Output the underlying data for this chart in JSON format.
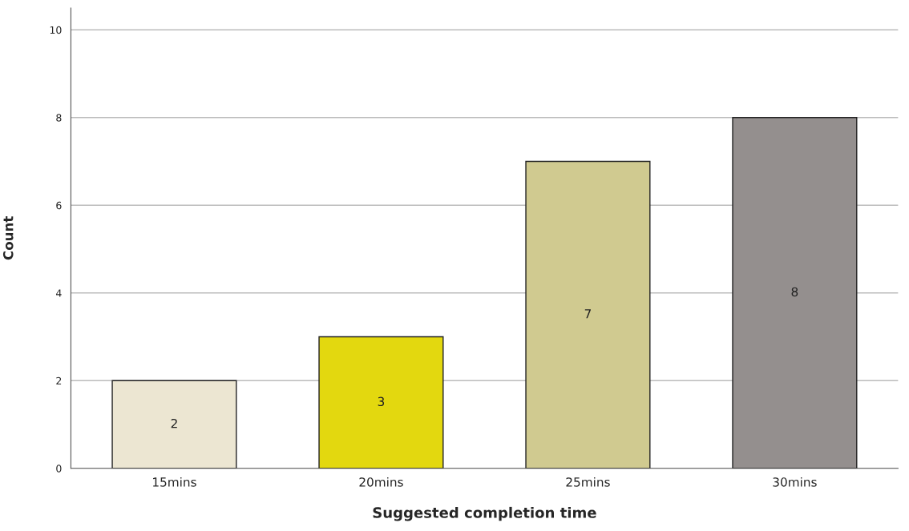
{
  "chart_data": {
    "type": "bar",
    "xlabel": "Suggested completion time",
    "ylabel": "Count",
    "categories": [
      "15mins",
      "20mins",
      "25mins",
      "30mins"
    ],
    "values": [
      2,
      3,
      7,
      8
    ],
    "colors": [
      "#ece6d2",
      "#e3d80f",
      "#d0ca90",
      "#948f8e"
    ],
    "ylim": [
      0,
      10.5
    ],
    "yticks": [
      0,
      2,
      4,
      6,
      8,
      10
    ],
    "grid": "y",
    "data_labels": true
  }
}
